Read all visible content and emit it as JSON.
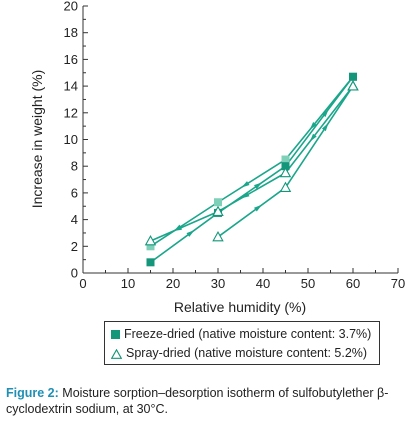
{
  "chart_data": {
    "type": "line",
    "xlabel": "Relative humidity (%)",
    "ylabel": "Increase in weight (%)",
    "xlim": [
      0,
      70
    ],
    "ylim": [
      0,
      20
    ],
    "xticks": [
      0,
      10,
      20,
      30,
      40,
      50,
      60,
      70
    ],
    "yticks": [
      0,
      2,
      4,
      6,
      8,
      10,
      12,
      14,
      16,
      18,
      20
    ],
    "grid": false,
    "legend_position": "below",
    "series": [
      {
        "name": "Freeze-dried (native moisture content: 3.7%)",
        "marker": "filled-square",
        "color": "#1aa68a",
        "sorption": {
          "x": [
            15,
            30,
            45,
            60
          ],
          "y": [
            0.8,
            4.5,
            8.0,
            14.7
          ]
        },
        "desorption": {
          "x": [
            60,
            45,
            30,
            15
          ],
          "y": [
            14.7,
            8.5,
            5.3,
            2.0
          ]
        }
      },
      {
        "name": "Spray-dried (native moisture content: 5.2%)",
        "marker": "open-triangle",
        "color": "#1aa68a",
        "sorption": {
          "x": [
            30,
            45,
            60
          ],
          "y": [
            2.7,
            6.4,
            14.0
          ]
        },
        "desorption": {
          "x": [
            60,
            45,
            30,
            15
          ],
          "y": [
            14.0,
            7.5,
            4.6,
            2.4
          ]
        }
      }
    ]
  },
  "legend": {
    "items": [
      "Freeze-dried (native moisture content: 3.7%)",
      "Spray-dried (native moisture content: 5.2%)"
    ]
  },
  "caption": {
    "label": "Figure 2:",
    "text": "Moisture sorption–desorption isotherm of sulfobutylether β-cyclodextrin sodium, at 30°C."
  },
  "colors": {
    "line": "#1aa68a",
    "freeze_marker": "#14967a",
    "freeze_desorption_marker": "#7fd0b8",
    "caption_label": "#1f8fb5",
    "axis": "#333333"
  }
}
